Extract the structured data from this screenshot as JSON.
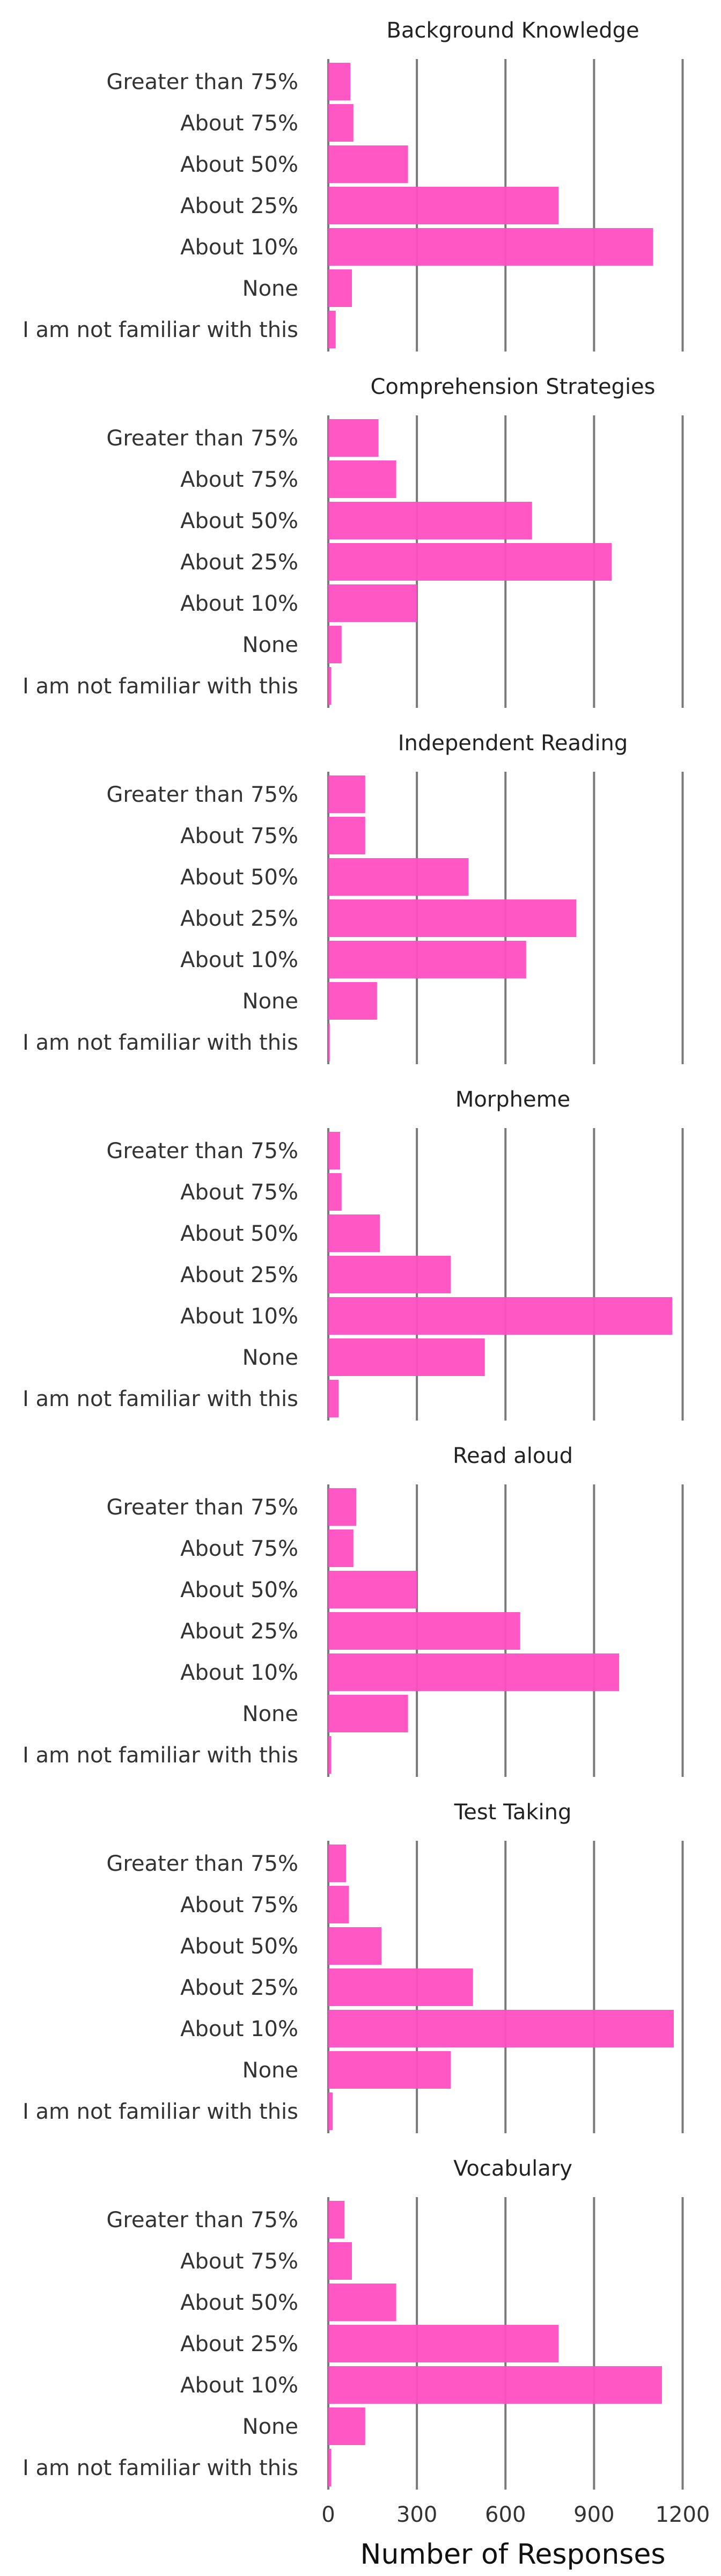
{
  "chart_data": {
    "type": "bar",
    "orientation": "horizontal",
    "xlabel": "Number of Responses",
    "xlim": [
      0,
      1250
    ],
    "xticks": [
      0,
      300,
      600,
      900,
      1200
    ],
    "xtick_labels": [
      "0",
      "300",
      "600",
      "900",
      "1200"
    ],
    "grid": "vertical",
    "bar_color": "#ff4fc1",
    "categories": [
      "Greater than 75%",
      "About 75%",
      "About 50%",
      "About 25%",
      "About 10%",
      "None",
      "I am not familiar with this"
    ],
    "panels": [
      {
        "title": "Background Knowledge",
        "values": [
          75,
          85,
          270,
          780,
          1100,
          80,
          25
        ]
      },
      {
        "title": "Comprehension Strategies",
        "values": [
          170,
          230,
          690,
          960,
          300,
          45,
          10
        ]
      },
      {
        "title": "Independent Reading",
        "values": [
          125,
          125,
          475,
          840,
          670,
          165,
          5
        ]
      },
      {
        "title": "Morpheme",
        "values": [
          40,
          45,
          175,
          415,
          1165,
          530,
          35
        ]
      },
      {
        "title": "Read aloud",
        "values": [
          95,
          85,
          300,
          650,
          985,
          270,
          10
        ]
      },
      {
        "title": "Test Taking",
        "values": [
          60,
          70,
          180,
          490,
          1170,
          415,
          15
        ]
      },
      {
        "title": "Vocabulary",
        "values": [
          55,
          80,
          230,
          780,
          1130,
          125,
          10
        ]
      }
    ]
  }
}
